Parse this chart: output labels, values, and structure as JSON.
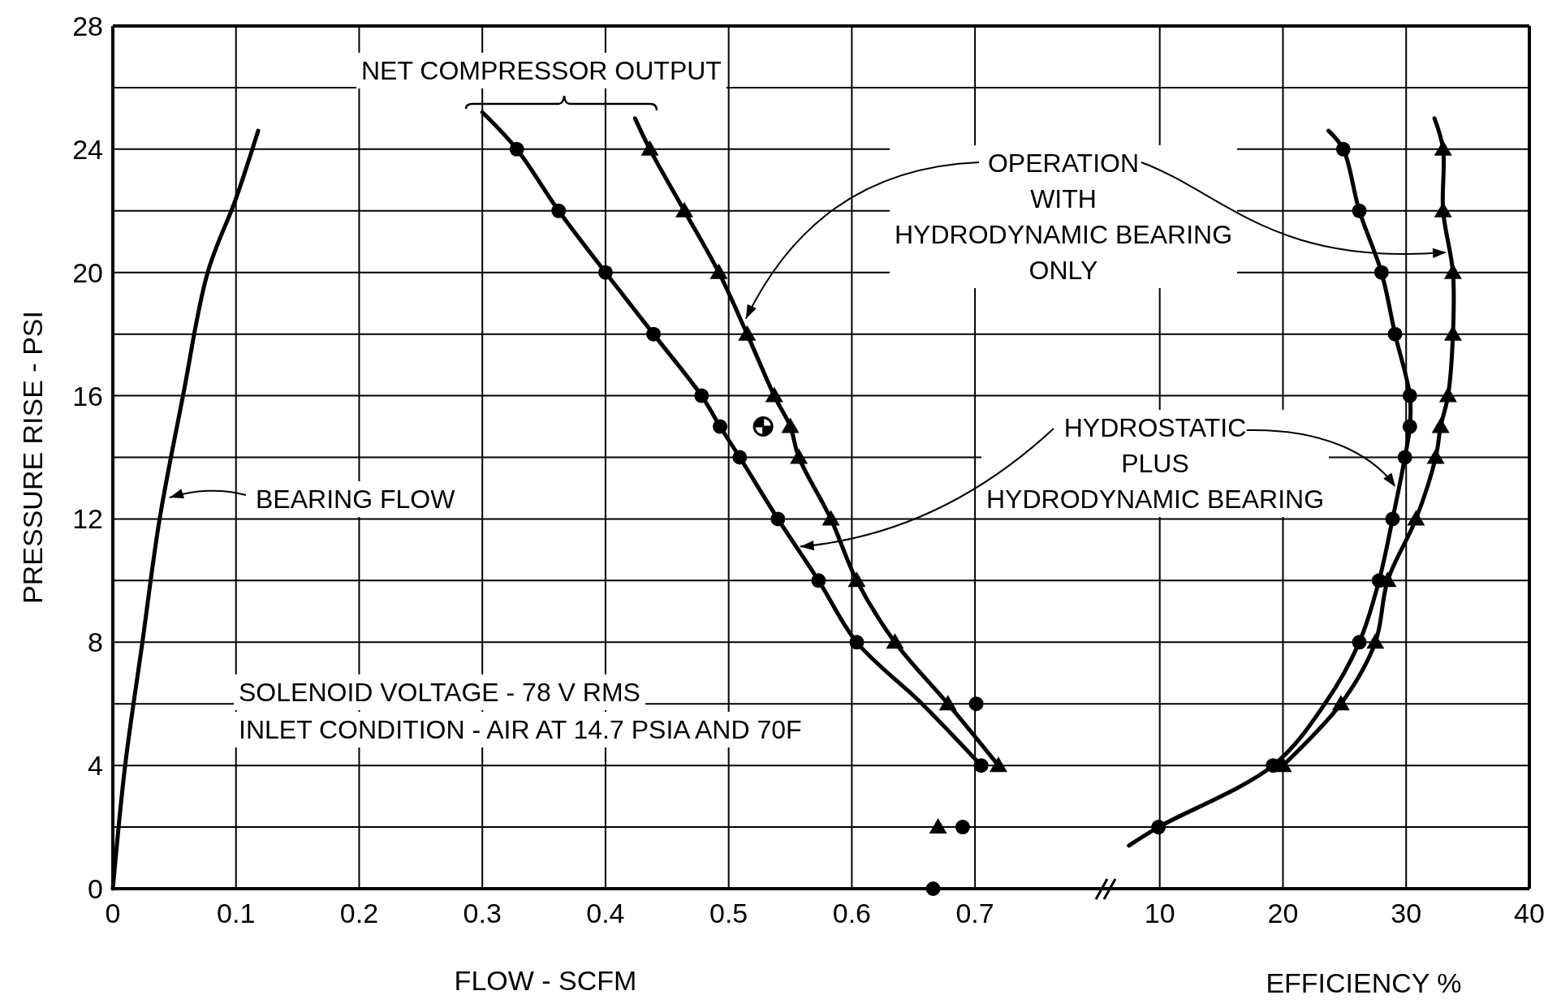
{
  "chart_data": [
    {
      "type": "line",
      "xlabel": "FLOW - SCFM",
      "ylabel": "PRESSURE RISE - PSI",
      "xlim": [
        0,
        0.81
      ],
      "xticks": [
        0,
        0.1,
        0.2,
        0.3,
        0.4,
        0.5,
        0.6,
        0.7
      ],
      "ylim": [
        0,
        28
      ],
      "yticks": [
        0,
        {
          "value": 2,
          "label": null
        },
        4,
        {
          "value": 6,
          "label": null
        },
        8,
        {
          "value": 10,
          "label": null
        },
        12,
        {
          "value": 14,
          "label": null
        },
        16,
        {
          "value": 18,
          "label": null
        },
        20,
        {
          "value": 22,
          "label": null
        },
        24,
        {
          "value": 26,
          "label": null
        },
        28
      ],
      "grid": true,
      "annotations": [
        "NET COMPRESSOR OUTPUT",
        {
          "text": "OPERATION WITH HYDRODYNAMIC BEARING ONLY",
          "x": 0.514,
          "y": 18.5
        },
        {
          "text": "HYDROSTATIC PLUS HYDRODYNAMIC BEARING",
          "x": 0.558,
          "y": 11.1
        },
        "BEARING FLOW",
        "SOLENOID VOLTAGE - 78 V RMS",
        "INLET CONDITION - AIR AT 14.7 PSIA AND 70F"
      ],
      "series": [
        {
          "type": "line",
          "marker": "none",
          "color": "#000000",
          "x": [
            0,
            0.01,
            0.024,
            0.038,
            0.057,
            0.077,
            0.1,
            0.118
          ],
          "values": [
            0,
            4,
            8,
            12,
            16,
            20,
            22.4,
            24.6
          ]
        },
        {
          "type": "line",
          "marker": "none",
          "color": "#000000",
          "x": [
            0.3,
            0.328,
            0.362,
            0.4,
            0.439,
            0.478,
            0.493,
            0.509,
            0.54,
            0.573,
            0.604,
            0.657,
            0.705
          ],
          "values": [
            25.2,
            24,
            22,
            20,
            18,
            16,
            15,
            14,
            12,
            10,
            8,
            6,
            4
          ]
        },
        {
          "type": "scatter",
          "marker": "circle",
          "color": "#000000",
          "x": [
            0.328,
            0.362,
            0.4,
            0.439,
            0.478,
            0.493,
            0.509,
            0.54,
            0.573,
            0.604,
            0.705,
            0.701,
            0.69,
            0.666
          ],
          "values": [
            24,
            22,
            20,
            18,
            16,
            15,
            14,
            12,
            10,
            8,
            4,
            6,
            2,
            0
          ]
        },
        {
          "type": "line",
          "marker": "none",
          "color": "#000000",
          "x": [
            0.424,
            0.436,
            0.464,
            0.492,
            0.515,
            0.537,
            0.55,
            0.557,
            0.583,
            0.604,
            0.635,
            0.678,
            0.719
          ],
          "values": [
            25,
            24,
            22,
            20,
            18,
            16,
            15,
            14,
            12,
            10,
            8,
            6,
            4
          ]
        },
        {
          "type": "scatter",
          "marker": "triangle",
          "color": "#000000",
          "x": [
            0.436,
            0.464,
            0.492,
            0.515,
            0.537,
            0.55,
            0.557,
            0.583,
            0.604,
            0.635,
            0.678,
            0.719,
            0.67
          ],
          "values": [
            24,
            22,
            20,
            18,
            16,
            15,
            14,
            12,
            10,
            8,
            6,
            4,
            2
          ]
        },
        {
          "type": "scatter",
          "color": "#000000",
          "x": [
            0.528
          ],
          "values": [
            15
          ]
        }
      ]
    },
    {
      "type": "line",
      "xlabel": "EFFICIENCY %",
      "xlim": [
        6,
        40
      ],
      "xticks": [
        10,
        20,
        30,
        40
      ],
      "ylim": [
        0,
        28
      ],
      "yticks": [
        0,
        {
          "value": 2,
          "label": null
        },
        4,
        {
          "value": 6,
          "label": null
        },
        8,
        {
          "value": 10,
          "label": null
        },
        12,
        {
          "value": 14,
          "label": null
        },
        16,
        {
          "value": 18,
          "label": null
        },
        20,
        {
          "value": 22,
          "label": null
        },
        24,
        {
          "value": 26,
          "label": null
        },
        28
      ],
      "grid": true,
      "tick_labels": "x",
      "series": [
        {
          "type": "line",
          "marker": "none",
          "color": "#000000",
          "x": [
            23.7,
            24.9,
            26.2,
            28.0,
            29.1,
            30.3,
            30.3,
            29.9,
            28.9,
            27.8,
            26.2,
            23.4,
            19.2,
            9.9,
            7.5
          ],
          "values": [
            24.6,
            24,
            22,
            20,
            18,
            16,
            15,
            14,
            12,
            10,
            8,
            6,
            4,
            2,
            1.4
          ]
        },
        {
          "type": "scatter",
          "marker": "circle",
          "color": "#000000",
          "x": [
            24.9,
            26.2,
            28.0,
            29.1,
            30.3,
            30.3,
            29.9,
            28.9,
            27.8,
            26.2,
            19.2,
            9.9
          ],
          "values": [
            24,
            22,
            20,
            18,
            16,
            15,
            14,
            12,
            10,
            8,
            4,
            2
          ]
        },
        {
          "type": "line",
          "marker": "none",
          "color": "#000000",
          "x": [
            32.3,
            33.0,
            33.0,
            33.8,
            33.8,
            33.4,
            32.8,
            32.4,
            30.8,
            28.5,
            27.5,
            24.7,
            20.0
          ],
          "values": [
            25,
            24,
            22,
            20,
            18,
            16,
            15,
            14,
            12,
            10,
            8,
            6,
            4
          ]
        },
        {
          "type": "scatter",
          "marker": "triangle",
          "color": "#000000",
          "x": [
            33.0,
            33.0,
            33.8,
            33.8,
            33.4,
            32.8,
            32.4,
            30.8,
            28.5,
            27.5,
            24.7,
            20.0
          ],
          "values": [
            24,
            22,
            20,
            18,
            16,
            15,
            14,
            12,
            10,
            8,
            6,
            4
          ]
        }
      ]
    }
  ]
}
